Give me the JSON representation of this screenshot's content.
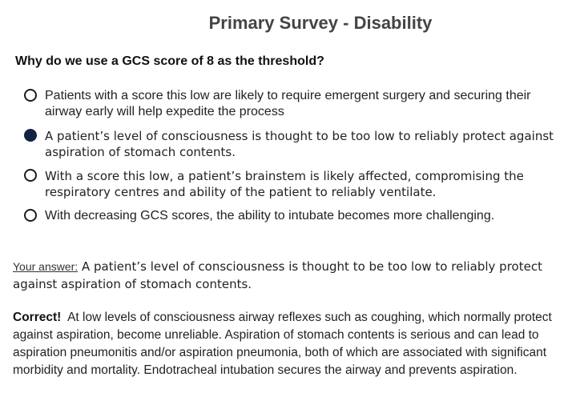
{
  "title": "Primary Survey - Disability",
  "question": "Why do we use a GCS score of 8 as the threshold?",
  "options": [
    {
      "text": "Patients with a score this low are likely to require emergent surgery and securing their airway early will help expedite the process",
      "selected": false
    },
    {
      "text": "A patient’s level of consciousness is thought to be too low to reliably protect against aspiration of stomach contents.",
      "selected": true
    },
    {
      "text": "With a score this low, a patient’s brainstem is likely affected, compromising the respiratory centres and ability of the patient to reliably ventilate.",
      "selected": false
    },
    {
      "text": "With decreasing GCS scores, the ability to intubate becomes more challenging.",
      "selected": false
    }
  ],
  "answer": {
    "label": "Your answer:",
    "text": "A patient’s level of consciousness is thought to be too low to reliably protect against aspiration of stomach contents."
  },
  "feedback": {
    "status": "Correct!",
    "text": "At low levels of consciousness airway reflexes such as coughing, which normally protect against aspiration, become unreliable.  Aspiration of stomach contents is serious and can lead to aspiration pneumonitis and/or aspiration pneumonia, both of which are associated with significant morbidity and mortality.  Endotracheal intubation secures the airway and prevents aspiration."
  },
  "colors": {
    "selected_radio": "#142343",
    "title": "#444444"
  }
}
